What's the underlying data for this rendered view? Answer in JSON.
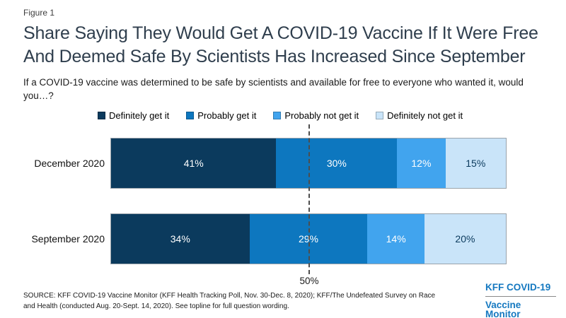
{
  "figure_label": "Figure 1",
  "title": "Share Saying They Would Get A COVID-19 Vaccine If It Were Free And Deemed Safe By Scientists Has Increased Since September",
  "subtitle": "If a COVID-19 vaccine was determined to be safe by scientists and available for free to everyone who wanted it, would you…?",
  "chart_data": {
    "type": "bar",
    "variant": "horizontal-stacked",
    "categories": [
      "December 2020",
      "September 2020"
    ],
    "series": [
      {
        "name": "Definitely get it",
        "color": "#0b3a5d",
        "label_color": "#ffffff",
        "values": [
          41,
          34
        ]
      },
      {
        "name": "Probably get it",
        "color": "#0d77bf",
        "label_color": "#ffffff",
        "values": [
          30,
          29
        ]
      },
      {
        "name": "Probably not get it",
        "color": "#41a4ee",
        "label_color": "#ffffff",
        "values": [
          12,
          14
        ]
      },
      {
        "name": "Definitely not get it",
        "color": "#c9e4f9",
        "label_color": "#0b3a5d",
        "values": [
          15,
          20
        ]
      }
    ],
    "value_suffix": "%",
    "xlim": [
      0,
      100
    ],
    "grid": false,
    "legend_position": "top",
    "reference_line": {
      "value": 50,
      "label": "50%",
      "style": "dashed"
    }
  },
  "source": "SOURCE: KFF COVID-19 Vaccine Monitor (KFF Health Tracking Poll, Nov. 30-Dec. 8, 2020); KFF/The Undefeated Survey on Race and Health (conducted Aug. 20-Sept. 14, 2020). See topline for full question wording.",
  "logo": {
    "line1": "KFF COVID-19",
    "line2": "Vaccine Monitor"
  },
  "colors": {
    "title": "#2f3e4d",
    "logo_blue": "#1478c0",
    "reference_line": "#4d4d4d",
    "bar_border": "#9aa3ab"
  }
}
